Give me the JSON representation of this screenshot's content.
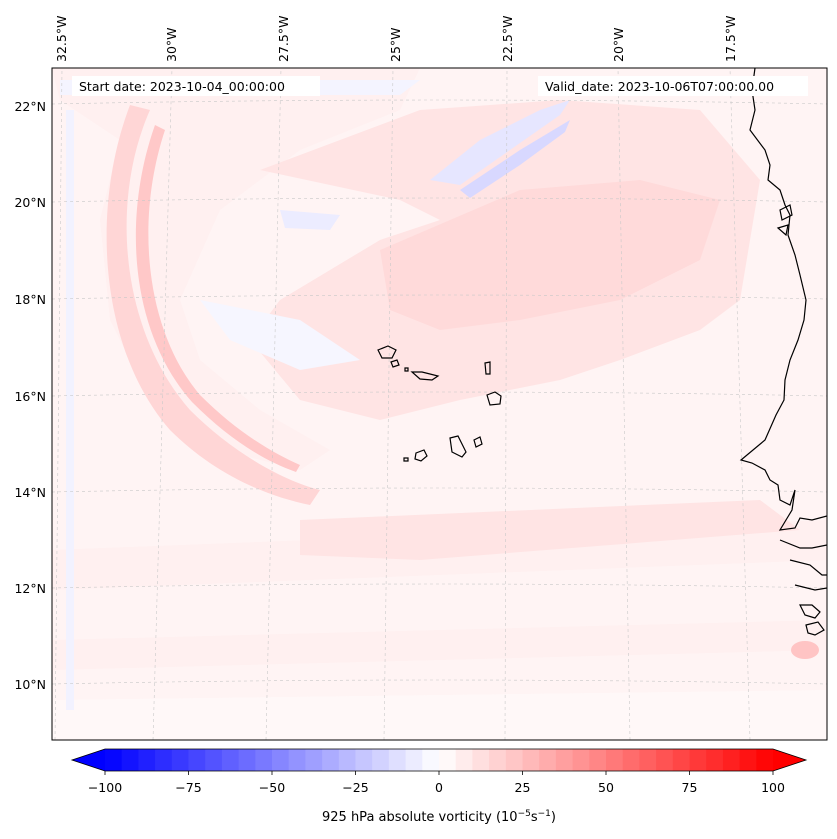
{
  "map": {
    "start_date": "Start date: 2023-10-04_00:00:00",
    "valid_date": "Valid_date: 2023-10-06T07:00:00.00",
    "longitude_labels": [
      "32.5°W",
      "30°W",
      "27.5°W",
      "25°W",
      "22.5°W",
      "20°W",
      "17.5°W"
    ],
    "latitude_labels": [
      "22°N",
      "20°N",
      "18°N",
      "16°N",
      "14°N",
      "12°N",
      "10°N"
    ]
  },
  "colorbar": {
    "label_prefix": "925 hPa absolute vorticity (10",
    "label_exp1": "−5",
    "label_mid": "s",
    "label_exp2": "−1",
    "label_suffix": ")",
    "tick_labels": [
      "−100",
      "−75",
      "−50",
      "−25",
      "0",
      "25",
      "50",
      "75",
      "100"
    ],
    "range": [
      -100,
      100
    ],
    "colormap": "bwr",
    "colors": {
      "min": "#0000ff",
      "mid": "#ffffff",
      "max": "#ff0000"
    }
  }
}
